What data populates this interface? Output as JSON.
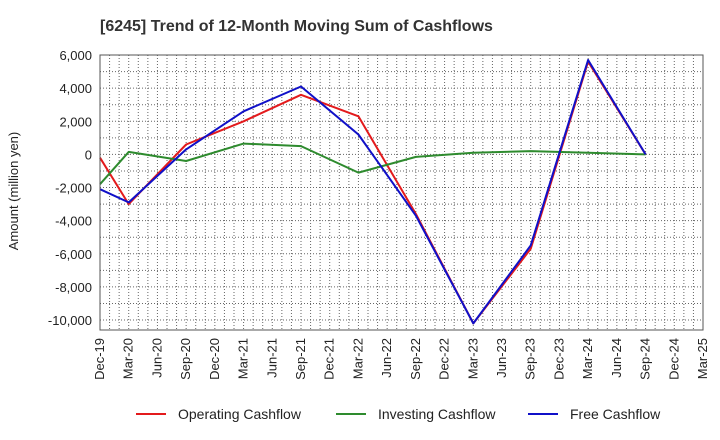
{
  "chart_data": {
    "type": "line",
    "title": "[6245]  Trend of 12-Month Moving Sum of Cashflows",
    "ylabel": "Amount (million yen)",
    "xlabel": "",
    "ylim": [
      -10600,
      6000
    ],
    "yticks": [
      6000,
      4000,
      2000,
      0,
      -2000,
      -4000,
      -6000,
      -8000,
      -10000
    ],
    "ytick_labels": [
      "6,000",
      "4,000",
      "2,000",
      "0",
      "-2,000",
      "-4,000",
      "-6,000",
      "-8,000",
      "-10,000"
    ],
    "categories": [
      "Dec-19",
      "Mar-20",
      "Jun-20",
      "Sep-20",
      "Dec-20",
      "Mar-21",
      "Jun-21",
      "Sep-21",
      "Dec-21",
      "Mar-22",
      "Jun-22",
      "Sep-22",
      "Dec-22",
      "Mar-23",
      "Jun-23",
      "Sep-23",
      "Dec-23",
      "Mar-24",
      "Jun-24",
      "Sep-24",
      "Dec-24",
      "Mar-25"
    ],
    "grid": true,
    "legend_position": "bottom",
    "series": [
      {
        "name": "Operating Cashflow",
        "color": "#e31a1c",
        "values": [
          -200,
          -3000,
          null,
          600,
          null,
          2000,
          null,
          3600,
          null,
          2300,
          null,
          -3600,
          null,
          -10200,
          null,
          -5700,
          null,
          5600,
          null,
          0,
          null,
          null
        ]
      },
      {
        "name": "Investing Cashflow",
        "color": "#2e8b2e",
        "values": [
          -1800,
          150,
          null,
          -400,
          null,
          650,
          null,
          500,
          null,
          -1100,
          null,
          -150,
          null,
          100,
          null,
          200,
          null,
          100,
          null,
          0,
          null,
          null
        ]
      },
      {
        "name": "Free Cashflow",
        "color": "#1010c8",
        "values": [
          -2100,
          -2900,
          null,
          300,
          null,
          2600,
          null,
          4100,
          null,
          1200,
          null,
          -3700,
          null,
          -10200,
          null,
          -5500,
          null,
          5700,
          null,
          0,
          null,
          null
        ]
      }
    ]
  }
}
